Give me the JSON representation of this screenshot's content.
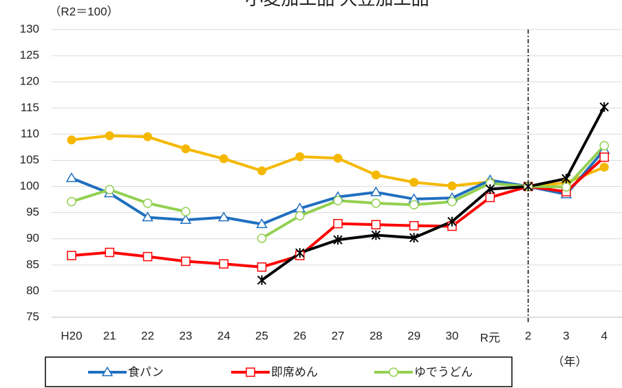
{
  "chart_data": {
    "type": "line",
    "title": "小麦加工品 大豆加工品",
    "y_axis_label": "（R2＝100）",
    "x_axis_label": "（年）",
    "categories": [
      "H20",
      "21",
      "22",
      "23",
      "24",
      "25",
      "26",
      "27",
      "28",
      "29",
      "30",
      "R元",
      "2",
      "3",
      "4"
    ],
    "ylim": [
      75,
      130
    ],
    "yticks": [
      75,
      80,
      85,
      90,
      95,
      100,
      105,
      110,
      115,
      120,
      125,
      130
    ],
    "grid": true,
    "reference_line": {
      "category": "2",
      "style": "dashdot"
    },
    "legend": "bottom",
    "series": [
      {
        "color": "#f5b800",
        "marker": "filled-circle",
        "values": [
          108.9,
          109.7,
          109.5,
          107.2,
          105.3,
          103.0,
          105.7,
          105.4,
          102.2,
          100.8,
          100.1,
          100.9,
          100,
          100.7,
          103.7
        ]
      },
      {
        "name": "食パン",
        "color": "#1f6fbf",
        "marker": "triangle",
        "values": [
          101.6,
          98.7,
          94.1,
          93.6,
          94.1,
          92.8,
          95.8,
          98.0,
          98.9,
          97.6,
          97.8,
          101.2,
          100,
          98.5,
          107.0
        ]
      },
      {
        "name": "即席めん",
        "color": "#ff0000",
        "marker": "square",
        "values": [
          86.8,
          87.4,
          86.6,
          85.7,
          85.2,
          84.6,
          86.8,
          92.9,
          92.7,
          92.5,
          92.4,
          97.9,
          100,
          99.0,
          105.6
        ]
      },
      {
        "name": "ゆでうどん",
        "color": "#92d050",
        "marker": "circle",
        "values": [
          97.1,
          99.4,
          96.8,
          95.2,
          null,
          90.1,
          94.4,
          97.3,
          96.8,
          96.5,
          97.1,
          100.6,
          100,
          99.9,
          107.8
        ]
      },
      {
        "color": "#000000",
        "marker": "star",
        "values": [
          null,
          null,
          null,
          null,
          null,
          82.1,
          87.3,
          89.8,
          90.7,
          90.2,
          93.3,
          99.5,
          100,
          101.5,
          115.2
        ]
      }
    ]
  }
}
